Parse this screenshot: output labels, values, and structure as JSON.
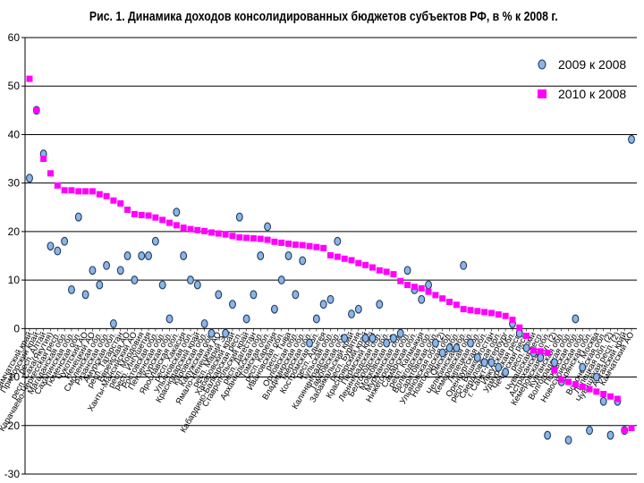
{
  "chart_data": {
    "type": "scatter",
    "title": "Рис. 1. Динамика доходов консолидированных бюджетов субъектов РФ, в % к 2008 г.",
    "ylim": [
      -30,
      60
    ],
    "y_ticks": [
      60,
      50,
      40,
      30,
      20,
      10,
      0,
      -10,
      -20,
      -30
    ],
    "grid": true,
    "legend_position": "top-right",
    "categories": [
      "Камчатский край",
      "Приморский край",
      "респ. Алтай",
      "респ. Саха(Якутия)",
      "Карачаево-Черкесская респ.",
      "Магаданская обл.",
      "Сахалинская обл.",
      "Тюменская обл.",
      "Чукотский АО",
      "Ненецкий АО",
      "Смоленская обл.",
      "Рязанская обл.",
      "Амурская обл.",
      "респ. Татарстан",
      "Еврейская АО",
      "Ханты-Мансийский АО",
      "респ. Мордовия",
      "респ. Ингушетия",
      "Ростовская обл.",
      "Пензенская обл.",
      "Курская обл.",
      "Ярославская обл.",
      "респ. Хакасия",
      "Ульяновская обл.",
      "Краснодарский край",
      "Кировская обл.",
      "Калужская обл.",
      "Ямало-Ненецкий АО",
      "респ. Марий Эл",
      "Хабаровский край",
      "Кабардино-Балкарская респ.",
      "Ставропольский край",
      "респ. Дагестан",
      "Архангельская обл.",
      "Томская обл.",
      "респ. Карелия",
      "Ивановская обл.",
      "респ. Тыва",
      "Орловская обл.",
      "Владимирская обл.",
      "Тверская обл.",
      "Костромская обл.",
      "респ. Адыгея",
      "Тульская обл.",
      "Калининградская обл.",
      "Тамбовская обл.",
      "Забайкальский край",
      "респ. Бурятия",
      "Красноярский край",
      "Пермский край",
      "Ленинградская обл.",
      "Белгородская обл.",
      "Московская обл.",
      "Мурманская обл.",
      "Нижегородская обл.",
      "Самарская обл.",
      "респ. Калмыкия",
      "Вологодская обл.",
      "Саратовская обл.",
      "Ульяновская обл. (2)",
      "Новгородская обл.",
      "Омская обл.",
      "Челябинская обл.",
      "Кемеровская обл.",
      "Липецкая обл.",
      "Оренбургская обл.",
      "респ. Башкортостан",
      "Свердловская обл.",
      "г. Санкт-Петербург",
      "Иркутская обл.",
      "Удмуртская респ.",
      "Чеченская респ.",
      "респ. Коми",
      "Чувашская респ.",
      "Астраханская обл.",
      "Кемеровская обл. (2)",
      "Курганская обл.",
      "Волгоградская обл.",
      "Псковская обл.",
      "Новосибирская обл.",
      "Брянская обл.",
      "г. Москва",
      "Воронежская обл.",
      "Липецкая обл. (2)",
      "Чувашская респ. (2)",
      "Алтайский край",
      "Камчатский АО"
    ],
    "series": [
      {
        "name": "2009 к 2008",
        "color": "#8db4e2",
        "values": [
          31,
          45,
          36,
          17,
          16,
          18,
          8,
          23,
          7,
          12,
          9,
          13,
          1,
          12,
          15,
          10,
          15,
          15,
          18,
          9,
          2,
          24,
          15,
          10,
          9,
          1,
          -1,
          7,
          -1,
          5,
          23,
          2,
          7,
          15,
          21,
          4,
          10,
          15,
          7,
          14,
          -3,
          2,
          5,
          6,
          18,
          -2,
          3,
          4,
          -2,
          -2,
          5,
          -3,
          -2,
          -1,
          12,
          8,
          6,
          9,
          -3,
          -5,
          -4,
          -4,
          13,
          -3,
          -6,
          -7,
          -7,
          -8,
          -9,
          1,
          -1,
          -4,
          -5,
          -6,
          -22,
          -7,
          -11,
          -23,
          2,
          -8,
          -21,
          -10,
          -15,
          -22,
          -15,
          -21,
          39
        ],
        "show_in_legend": true
      },
      {
        "name": "2010 к 2008",
        "color": "#ff00ff",
        "values": [
          51.5,
          45,
          35,
          32,
          29.5,
          28.5,
          28.5,
          28.3,
          28.3,
          28.3,
          27.7,
          27.3,
          26.4,
          25.8,
          24.5,
          23.6,
          23.4,
          23.3,
          22.9,
          22.4,
          21.8,
          21.3,
          20.8,
          20.5,
          20.3,
          20.1,
          19.8,
          19.6,
          19.4,
          19.1,
          18.8,
          18.7,
          18.6,
          18.5,
          18.3,
          17.9,
          17.7,
          17.5,
          17.3,
          17.2,
          17.0,
          16.8,
          16.6,
          15.1,
          14.8,
          14.4,
          14.1,
          13.5,
          13.1,
          12.6,
          12.0,
          11.7,
          11.2,
          9.8,
          9.0,
          8.6,
          8.3,
          7.6,
          6.9,
          6.2,
          5.5,
          4.9,
          4.0,
          3.8,
          3.6,
          3.4,
          3.2,
          2.9,
          2.6,
          1.8,
          0.2,
          -1.5,
          -4.5,
          -4.7,
          -5.0,
          -8.5,
          -10.5,
          -11.0,
          -11.5,
          -12.0,
          -12.5,
          -13.0,
          -13.5,
          -14.0,
          -14.5,
          -21.0,
          -20.5
        ],
        "show_in_legend": true
      }
    ]
  }
}
